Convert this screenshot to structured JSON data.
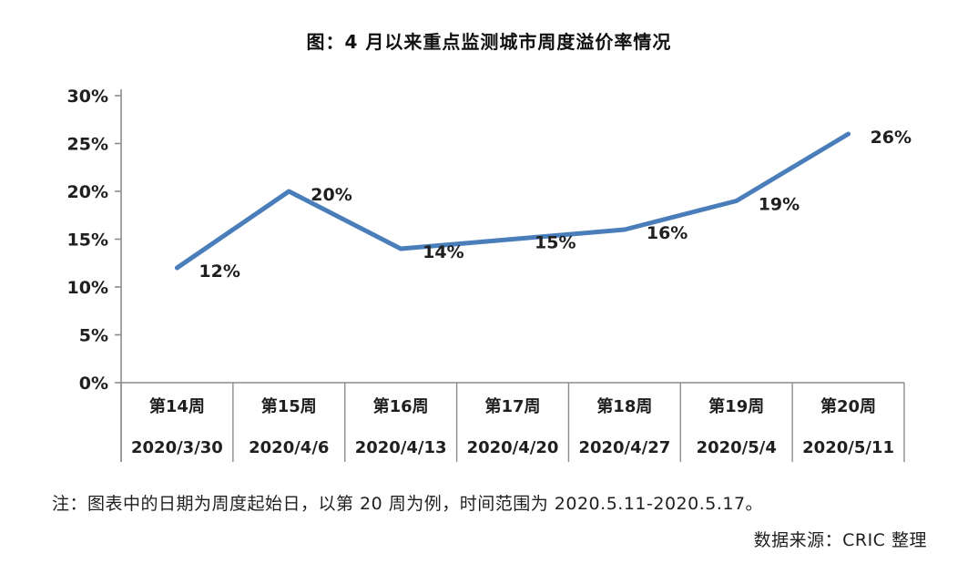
{
  "chart_data": {
    "type": "line",
    "title": "图：4 月以来重点监测城市周度溢价率情况",
    "categories": [
      "第14周",
      "第15周",
      "第16周",
      "第17周",
      "第18周",
      "第19周",
      "第20周"
    ],
    "category_dates": [
      "2020/3/30",
      "2020/4/6",
      "2020/4/13",
      "2020/4/20",
      "2020/4/27",
      "2020/5/4",
      "2020/5/11"
    ],
    "series": [
      {
        "name": "周度溢价率",
        "values": [
          12,
          20,
          14,
          15,
          16,
          19,
          26
        ],
        "data_labels": [
          "12%",
          "20%",
          "14%",
          "15%",
          "16%",
          "19%",
          "26%"
        ]
      }
    ],
    "xlabel": "",
    "ylabel": "",
    "ylim": [
      0,
      30
    ],
    "y_tick_values": [
      0,
      5,
      10,
      15,
      20,
      25,
      30
    ],
    "y_tick_labels": [
      "0%",
      "5%",
      "10%",
      "15%",
      "20%",
      "25%",
      "30%"
    ],
    "grid": false,
    "legend": "none",
    "line_color": "#4a7ebb",
    "axis_color": "#8c8c8c",
    "text_color": "#1f1f1f"
  },
  "footer": {
    "note": "注：图表中的日期为周度起始日，以第 20 周为例，时间范围为 2020.5.11-2020.5.17。",
    "source": "数据来源：CRIC 整理"
  }
}
